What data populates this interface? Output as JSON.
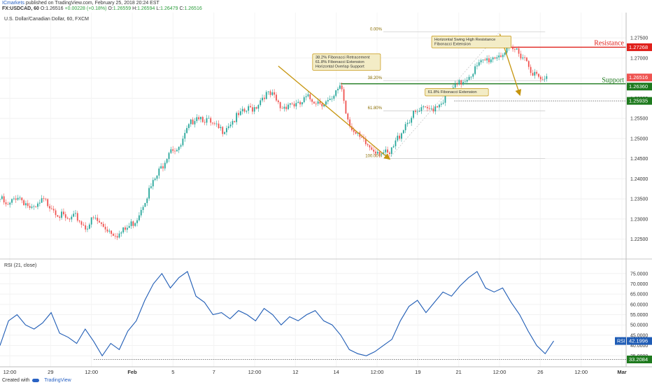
{
  "header": {
    "publisher": "ICmarkets",
    "published_text": "published on TradingView.com, February 25, 2018 20:24 EST",
    "symbol": "FX:USDCAD, 60",
    "ohlc": [
      {
        "label": "O:",
        "value": "1.26516"
      },
      {
        "label": "",
        "value": "+0.00228 (+0.18%)"
      },
      {
        "label": "O:",
        "value": "1.26559"
      },
      {
        "label": "H:",
        "value": "1.26594"
      },
      {
        "label": "L:",
        "value": "1.26479"
      },
      {
        "label": "C:",
        "value": "1.26516"
      }
    ]
  },
  "footer": {
    "created_with": "Created with",
    "brand": "TradingView"
  },
  "colors": {
    "up": "#26a69a",
    "down": "#ef5350",
    "rsi": "#1f5cb5",
    "resistance": "#e0201b",
    "support": "#1e7a1e",
    "arrow": "#c6950e",
    "note_bg": "#f3ecc6",
    "note_border": "#c6950e"
  },
  "chart_data": [
    {
      "type": "candlestick",
      "title": "U.S. Dollar/Canadian Dollar, 60, FXCM",
      "ylim": [
        1.2225,
        1.2785
      ],
      "y_ticks": [
        "1.27500",
        "1.27000",
        "1.26500",
        "1.26000",
        "1.25500",
        "1.25000",
        "1.24500",
        "1.24000",
        "1.23500",
        "1.23000",
        "1.22500"
      ],
      "x_ticks": [
        "12:00",
        "29",
        "12:00",
        "Feb",
        "5",
        "7",
        "12:00",
        "12",
        "14",
        "12:00",
        "19",
        "21",
        "12:00",
        "26",
        "12:00",
        "Mar"
      ],
      "price_path": [
        [
          0,
          1.235
        ],
        [
          3,
          1.233
        ],
        [
          6,
          1.236
        ],
        [
          9,
          1.234
        ],
        [
          12,
          1.232
        ],
        [
          15,
          1.2345
        ],
        [
          18,
          1.2335
        ],
        [
          21,
          1.231
        ],
        [
          24,
          1.2295
        ],
        [
          27,
          1.2305
        ],
        [
          30,
          1.228
        ],
        [
          33,
          1.23
        ],
        [
          36,
          1.2285
        ],
        [
          39,
          1.227
        ],
        [
          42,
          1.2262
        ],
        [
          45,
          1.2278
        ],
        [
          48,
          1.23
        ],
        [
          51,
          1.235
        ],
        [
          54,
          1.239
        ],
        [
          57,
          1.243
        ],
        [
          60,
          1.248
        ],
        [
          63,
          1.247
        ],
        [
          66,
          1.252
        ],
        [
          69,
          1.256
        ],
        [
          72,
          1.255
        ],
        [
          75,
          1.253
        ],
        [
          78,
          1.252
        ],
        [
          81,
          1.254
        ],
        [
          84,
          1.2555
        ],
        [
          87,
          1.257
        ],
        [
          90,
          1.258
        ],
        [
          93,
          1.261
        ],
        [
          96,
          1.2605
        ],
        [
          99,
          1.2575
        ],
        [
          102,
          1.259
        ],
        [
          105,
          1.258
        ],
        [
          108,
          1.26
        ],
        [
          111,
          1.2595
        ],
        [
          114,
          1.259
        ],
        [
          117,
          1.259
        ],
        [
          120,
          1.264
        ],
        [
          122,
          1.256
        ],
        [
          125,
          1.251
        ],
        [
          128,
          1.249
        ],
        [
          131,
          1.2475
        ],
        [
          134,
          1.247
        ],
        [
          137,
          1.2455
        ],
        [
          140,
          1.25
        ],
        [
          143,
          1.254
        ],
        [
          146,
          1.256
        ],
        [
          149,
          1.257
        ],
        [
          152,
          1.2575
        ],
        [
          155,
          1.259
        ],
        [
          158,
          1.261
        ],
        [
          161,
          1.263
        ],
        [
          164,
          1.265
        ],
        [
          167,
          1.267
        ],
        [
          170,
          1.269
        ],
        [
          173,
          1.27
        ],
        [
          176,
          1.271
        ],
        [
          179,
          1.2715
        ],
        [
          182,
          1.272
        ],
        [
          185,
          1.27
        ],
        [
          188,
          1.266
        ],
        [
          191,
          1.264
        ],
        [
          193,
          1.26516
        ]
      ],
      "price_xmax": 220,
      "resistance": {
        "label": "Resistance",
        "value": 1.27268,
        "tag": "1.27268"
      },
      "support": {
        "label": "Support",
        "value": 1.2636,
        "tag": "1.26360"
      },
      "current": {
        "value": 1.26516,
        "tag": "1.26516"
      },
      "extension_level": {
        "value": 1.25935,
        "tag": "1.25935"
      },
      "fib_levels": [
        {
          "label": "0.00%",
          "value": 1.2765
        },
        {
          "label": "38.20%",
          "value": 1.2644
        },
        {
          "label": "61.80%",
          "value": 1.2569
        },
        {
          "label": "100.00%",
          "value": 1.245
        }
      ],
      "annotations": [
        {
          "lines": [
            "Horizontal Swing High Resistance",
            "Fibonacci Extension"
          ],
          "anchor": [
            180,
            1.274
          ]
        },
        {
          "lines": [
            "38.2% Fibonacci Retracement",
            "61.8% Fibonacci Extension",
            "Horizontal Overlap Support"
          ],
          "anchor": [
            134,
            1.269
          ]
        },
        {
          "lines": [
            "61.8% Fibonacci Extension"
          ],
          "anchor": [
            172,
            1.2615
          ]
        }
      ],
      "arrows": [
        {
          "from": [
            98,
            1.268
          ],
          "to": [
            137,
            1.245
          ]
        },
        {
          "from": [
            176,
            1.276
          ],
          "to": [
            183,
            1.261
          ]
        }
      ]
    },
    {
      "type": "line",
      "title": "RSI (21, close)",
      "ylim": [
        31,
        78
      ],
      "y_ticks": [
        "75.0000",
        "70.0000",
        "65.0000",
        "60.0000",
        "55.0000",
        "50.0000",
        "45.0000",
        "40.0000",
        "35.0000"
      ],
      "series": [
        {
          "name": "RSI",
          "current_tag": "42.1996",
          "values": [
            [
              0,
              40
            ],
            [
              3,
              52
            ],
            [
              6,
              55
            ],
            [
              9,
              50
            ],
            [
              12,
              48
            ],
            [
              15,
              51
            ],
            [
              18,
              56
            ],
            [
              21,
              46
            ],
            [
              24,
              44
            ],
            [
              27,
              41
            ],
            [
              30,
              48
            ],
            [
              33,
              42
            ],
            [
              36,
              35
            ],
            [
              39,
              41
            ],
            [
              42,
              38
            ],
            [
              45,
              47
            ],
            [
              48,
              52
            ],
            [
              51,
              62
            ],
            [
              54,
              70
            ],
            [
              57,
              75
            ],
            [
              60,
              68
            ],
            [
              63,
              73
            ],
            [
              66,
              76
            ],
            [
              69,
              64
            ],
            [
              72,
              61
            ],
            [
              75,
              55
            ],
            [
              78,
              56
            ],
            [
              81,
              53
            ],
            [
              84,
              57
            ],
            [
              87,
              55
            ],
            [
              90,
              52
            ],
            [
              93,
              58
            ],
            [
              96,
              55
            ],
            [
              99,
              50
            ],
            [
              102,
              54
            ],
            [
              105,
              52
            ],
            [
              108,
              55
            ],
            [
              111,
              57
            ],
            [
              114,
              52
            ],
            [
              117,
              50
            ],
            [
              120,
              45
            ],
            [
              123,
              38
            ],
            [
              126,
              36
            ],
            [
              129,
              35
            ],
            [
              132,
              37
            ],
            [
              135,
              40
            ],
            [
              138,
              43
            ],
            [
              141,
              52
            ],
            [
              144,
              59
            ],
            [
              147,
              62
            ],
            [
              150,
              56
            ],
            [
              153,
              61
            ],
            [
              156,
              66
            ],
            [
              159,
              64
            ],
            [
              162,
              69
            ],
            [
              165,
              73
            ],
            [
              168,
              76
            ],
            [
              171,
              68
            ],
            [
              174,
              66
            ],
            [
              177,
              68
            ],
            [
              180,
              61
            ],
            [
              183,
              55
            ],
            [
              186,
              47
            ],
            [
              189,
              40
            ],
            [
              192,
              36
            ],
            [
              195,
              42.2
            ]
          ]
        }
      ],
      "reference_line": {
        "value": 33.2084,
        "tag": "33.2084"
      }
    }
  ]
}
